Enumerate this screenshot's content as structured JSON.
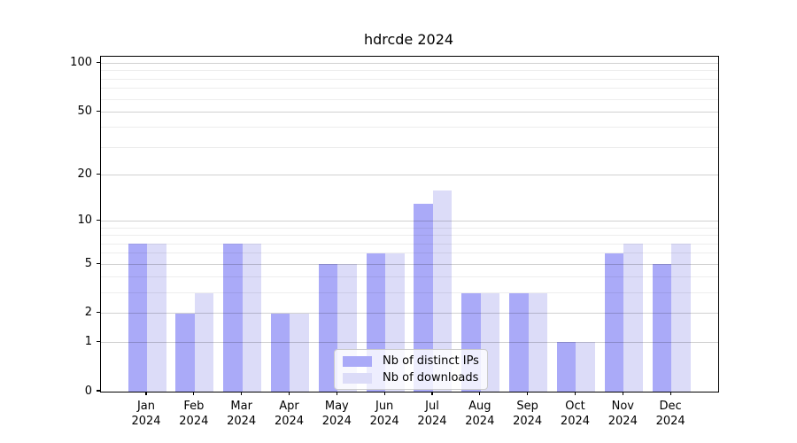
{
  "chart_data": {
    "type": "bar",
    "title": "hdrcde 2024",
    "x": [
      {
        "month": "Jan",
        "year": "2024"
      },
      {
        "month": "Feb",
        "year": "2024"
      },
      {
        "month": "Mar",
        "year": "2024"
      },
      {
        "month": "Apr",
        "year": "2024"
      },
      {
        "month": "May",
        "year": "2024"
      },
      {
        "month": "Jun",
        "year": "2024"
      },
      {
        "month": "Jul",
        "year": "2024"
      },
      {
        "month": "Aug",
        "year": "2024"
      },
      {
        "month": "Sep",
        "year": "2024"
      },
      {
        "month": "Oct",
        "year": "2024"
      },
      {
        "month": "Nov",
        "year": "2024"
      },
      {
        "month": "Dec",
        "year": "2024"
      }
    ],
    "series": [
      {
        "name": "Nb of distinct IPs",
        "color": "#aaaaf8",
        "values": [
          7,
          2,
          7,
          2,
          5,
          6,
          13,
          3,
          3,
          1,
          6,
          5
        ]
      },
      {
        "name": "Nb of downloads",
        "color": "#dcdcf8",
        "values": [
          7,
          3,
          7,
          2,
          5,
          6,
          16,
          3,
          3,
          1,
          7,
          7
        ]
      }
    ],
    "yscale": "log1p",
    "ylim": [
      0,
      110
    ],
    "yticks": [
      0,
      1,
      2,
      5,
      10,
      20,
      50,
      100
    ],
    "minor_gridlines": [
      3,
      4,
      6,
      7,
      8,
      9,
      30,
      40,
      60,
      70,
      80,
      90
    ],
    "grid": true,
    "legend_position": "inside-bottom-center",
    "colors": {
      "bar_distinct_ips": "#aaaaf8",
      "bar_downloads": "#dcdcf8",
      "axis": "#000000",
      "major_grid": "rgba(0,0,0,0.18)",
      "minor_grid": "rgba(0,0,0,0.07)"
    }
  }
}
